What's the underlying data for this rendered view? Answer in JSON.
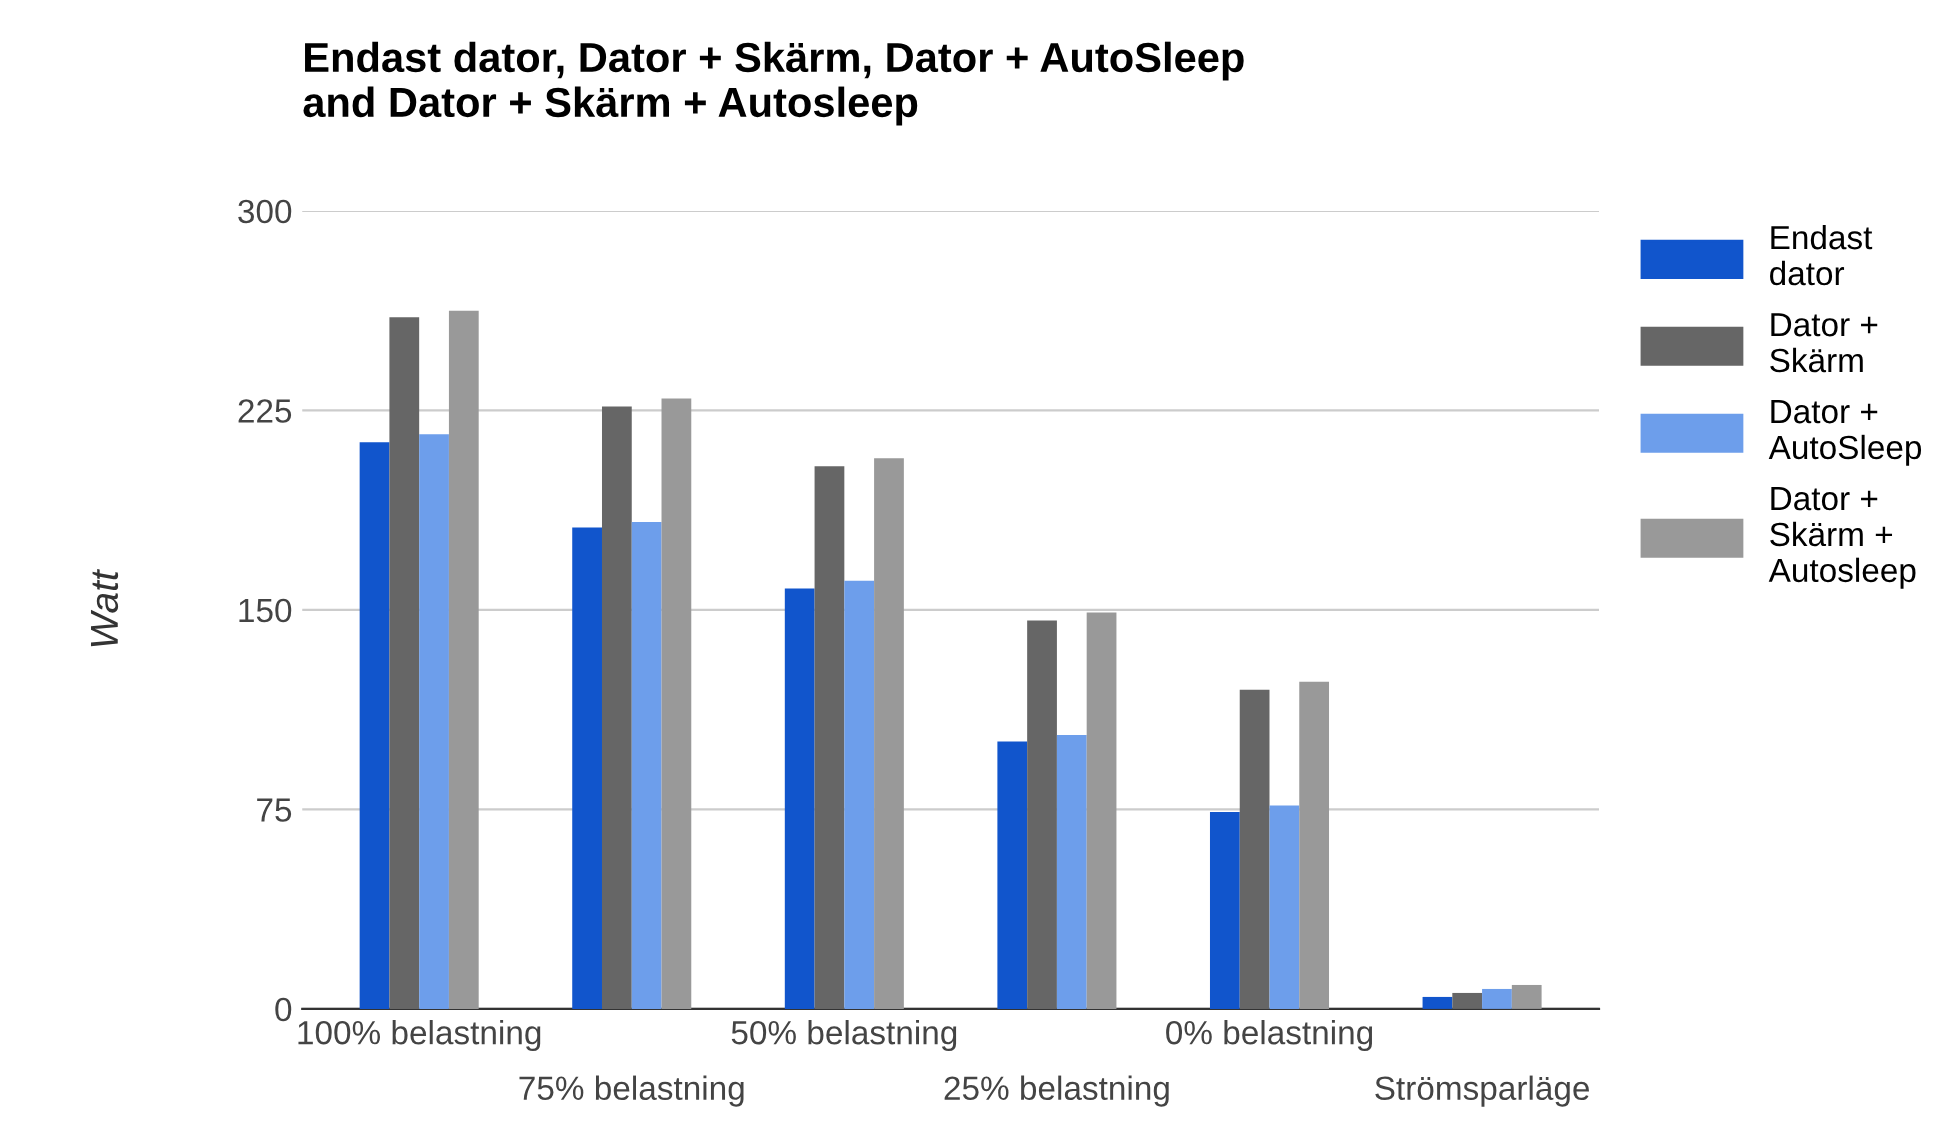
{
  "chart_data": {
    "type": "bar",
    "title": "Endast dator, Dator + Skärm, Dator + AutoSleep\nand Dator + Skärm + Autosleep",
    "ylabel": "Watt",
    "categories": [
      "100% belastning",
      "75% belastning",
      "50% belastning",
      "25% belastning",
      "0% belastning",
      "Strömsparläge"
    ],
    "series": [
      {
        "name": "Endast\ndator",
        "color": "#1155cc",
        "values": [
          213,
          181,
          158,
          100.5,
          74,
          4.5
        ]
      },
      {
        "name": "Dator +\nSkärm",
        "color": "#666666",
        "values": [
          260,
          226.5,
          204,
          146,
          120,
          6
        ]
      },
      {
        "name": "Dator +\nAutoSleep",
        "color": "#6d9eeb",
        "values": [
          216,
          183,
          161,
          103,
          76.5,
          7.5
        ]
      },
      {
        "name": "Dator +\nSkärm +\nAutosleep",
        "color": "#999999",
        "values": [
          262.5,
          229.5,
          207,
          149,
          123,
          9
        ]
      }
    ],
    "ylim": [
      0,
      300
    ],
    "yticks": [
      0,
      75,
      150,
      225,
      300
    ],
    "grid": "y",
    "legend": "right"
  }
}
